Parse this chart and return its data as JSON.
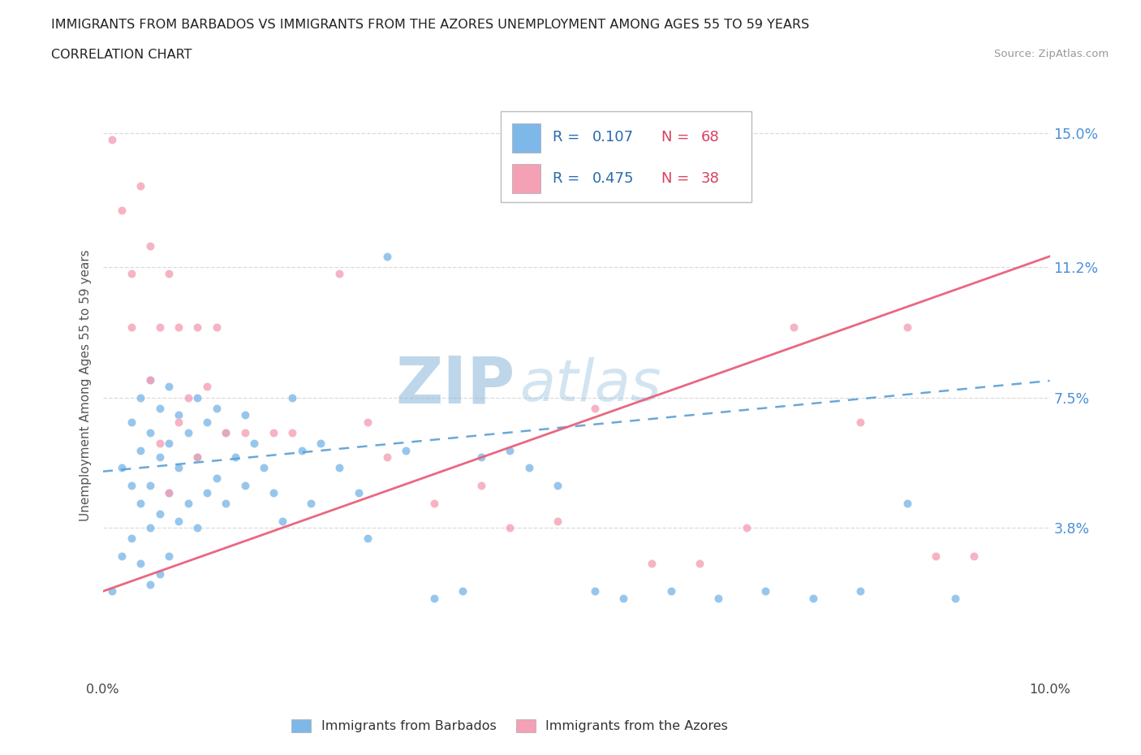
{
  "title_line1": "IMMIGRANTS FROM BARBADOS VS IMMIGRANTS FROM THE AZORES UNEMPLOYMENT AMONG AGES 55 TO 59 YEARS",
  "title_line2": "CORRELATION CHART",
  "source_text": "Source: ZipAtlas.com",
  "ylabel": "Unemployment Among Ages 55 to 59 years",
  "xlim": [
    0.0,
    0.1
  ],
  "ylim": [
    -0.005,
    0.162
  ],
  "yticks": [
    0.038,
    0.075,
    0.112,
    0.15
  ],
  "ytick_labels": [
    "3.8%",
    "7.5%",
    "11.2%",
    "15.0%"
  ],
  "xtick_positions": [
    0.0,
    0.02,
    0.04,
    0.06,
    0.08,
    0.1
  ],
  "xtick_labels": [
    "0.0%",
    "",
    "",
    "",
    "",
    "10.0%"
  ],
  "barbados_R": 0.107,
  "barbados_N": 68,
  "azores_R": 0.475,
  "azores_N": 38,
  "blue_color": "#7db8e8",
  "pink_color": "#f4a0b5",
  "blue_line_color": "#5a9fd4",
  "pink_line_color": "#e8607a",
  "watermark_zip": "ZIP",
  "watermark_atlas": "atlas",
  "barbados_x": [
    0.001,
    0.002,
    0.002,
    0.003,
    0.003,
    0.003,
    0.004,
    0.004,
    0.004,
    0.004,
    0.005,
    0.005,
    0.005,
    0.005,
    0.005,
    0.006,
    0.006,
    0.006,
    0.006,
    0.007,
    0.007,
    0.007,
    0.007,
    0.008,
    0.008,
    0.008,
    0.009,
    0.009,
    0.01,
    0.01,
    0.01,
    0.011,
    0.011,
    0.012,
    0.012,
    0.013,
    0.013,
    0.014,
    0.015,
    0.015,
    0.016,
    0.017,
    0.018,
    0.019,
    0.02,
    0.021,
    0.022,
    0.023,
    0.025,
    0.027,
    0.028,
    0.03,
    0.032,
    0.035,
    0.038,
    0.04,
    0.043,
    0.045,
    0.048,
    0.052,
    0.055,
    0.06,
    0.065,
    0.07,
    0.075,
    0.08,
    0.085,
    0.09
  ],
  "barbados_y": [
    0.02,
    0.055,
    0.03,
    0.068,
    0.05,
    0.035,
    0.075,
    0.06,
    0.045,
    0.028,
    0.08,
    0.065,
    0.05,
    0.038,
    0.022,
    0.072,
    0.058,
    0.042,
    0.025,
    0.078,
    0.062,
    0.048,
    0.03,
    0.07,
    0.055,
    0.04,
    0.065,
    0.045,
    0.075,
    0.058,
    0.038,
    0.068,
    0.048,
    0.072,
    0.052,
    0.065,
    0.045,
    0.058,
    0.07,
    0.05,
    0.062,
    0.055,
    0.048,
    0.04,
    0.075,
    0.06,
    0.045,
    0.062,
    0.055,
    0.048,
    0.035,
    0.115,
    0.06,
    0.018,
    0.02,
    0.058,
    0.06,
    0.055,
    0.05,
    0.02,
    0.018,
    0.02,
    0.018,
    0.02,
    0.018,
    0.02,
    0.045,
    0.018
  ],
  "azores_x": [
    0.001,
    0.002,
    0.003,
    0.003,
    0.004,
    0.005,
    0.005,
    0.006,
    0.006,
    0.007,
    0.007,
    0.008,
    0.008,
    0.009,
    0.01,
    0.01,
    0.011,
    0.012,
    0.013,
    0.015,
    0.018,
    0.02,
    0.025,
    0.028,
    0.03,
    0.035,
    0.04,
    0.043,
    0.048,
    0.052,
    0.058,
    0.063,
    0.068,
    0.073,
    0.08,
    0.085,
    0.088,
    0.092
  ],
  "azores_y": [
    0.148,
    0.128,
    0.11,
    0.095,
    0.135,
    0.118,
    0.08,
    0.095,
    0.062,
    0.11,
    0.048,
    0.095,
    0.068,
    0.075,
    0.095,
    0.058,
    0.078,
    0.095,
    0.065,
    0.065,
    0.065,
    0.065,
    0.11,
    0.068,
    0.058,
    0.045,
    0.05,
    0.038,
    0.04,
    0.072,
    0.028,
    0.028,
    0.038,
    0.095,
    0.068,
    0.095,
    0.03,
    0.03
  ],
  "blue_trend_x0": 0.0,
  "blue_trend_y0": 0.054,
  "blue_trend_x1": 0.035,
  "blue_trend_y1": 0.063,
  "pink_trend_x0": 0.0,
  "pink_trend_y0": 0.02,
  "pink_trend_x1": 0.1,
  "pink_trend_y1": 0.115
}
